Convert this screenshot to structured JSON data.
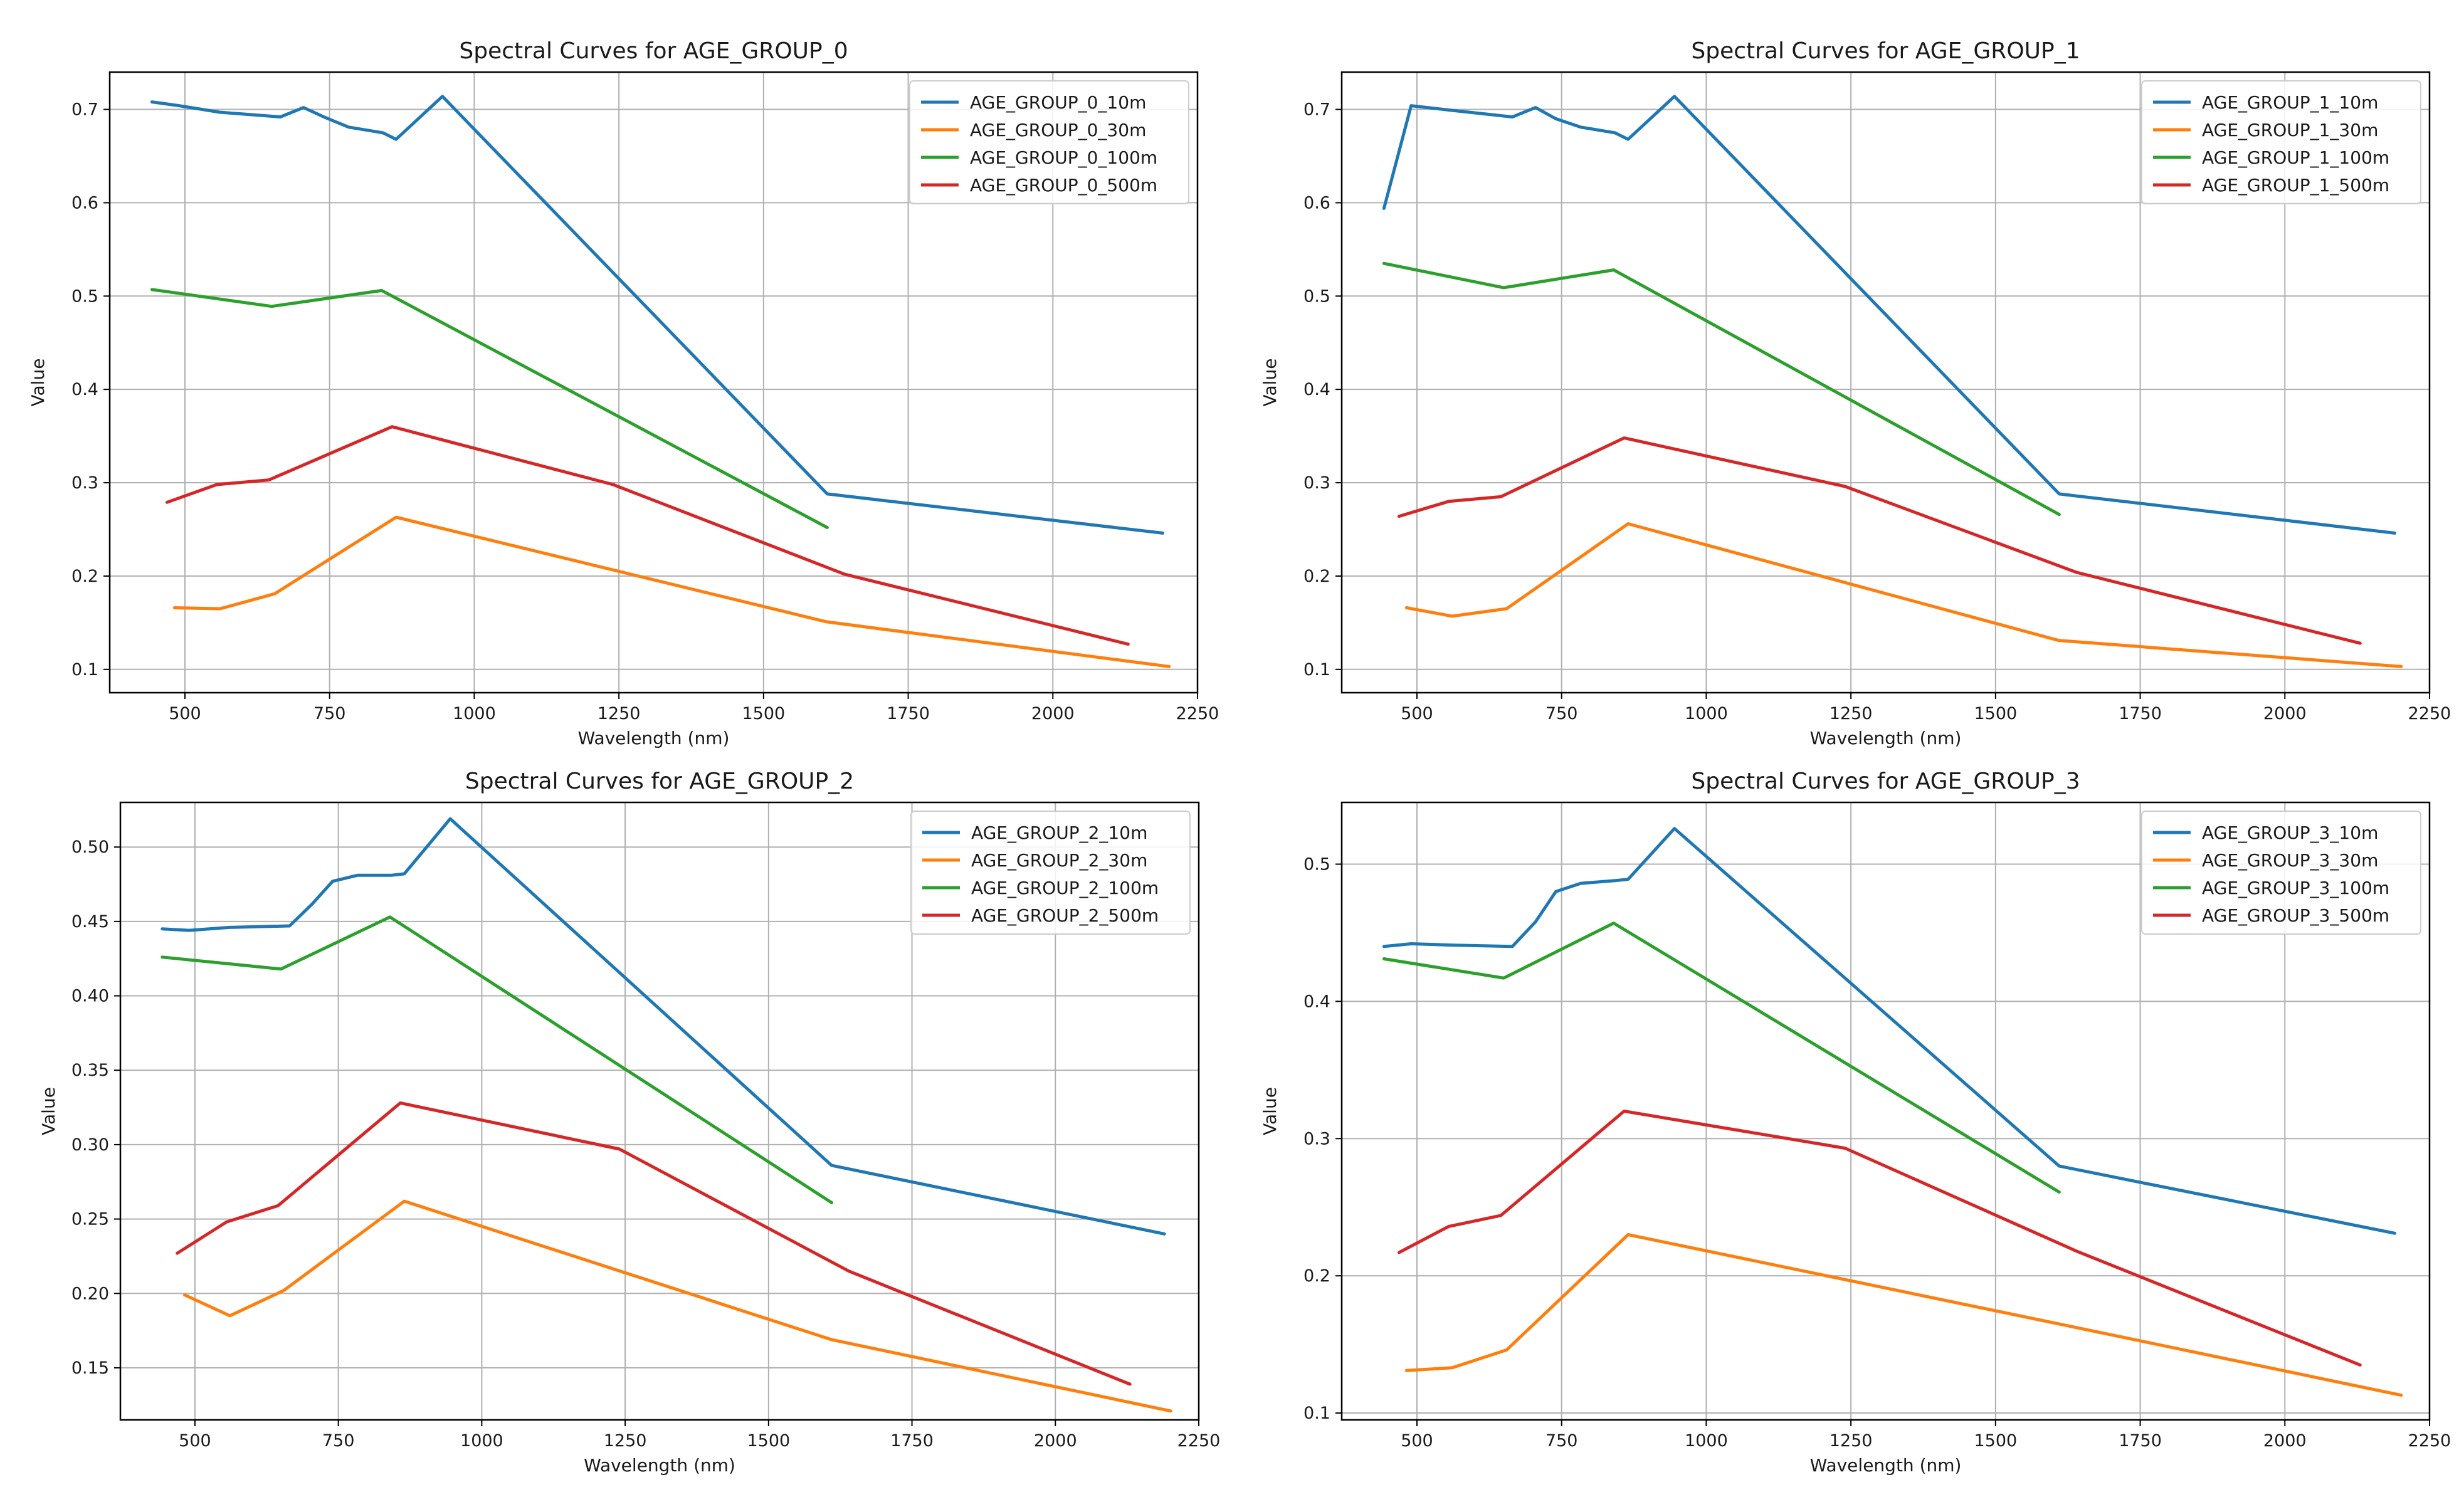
{
  "figure": {
    "colors": {
      "10m": "#1f77b4",
      "30m": "#ff7f0e",
      "100m": "#2ca02c",
      "500m": "#d62728",
      "grid": "#b0b0b0"
    }
  },
  "chart_data": [
    {
      "type": "line",
      "title": "Spectral Curves for AGE_GROUP_0",
      "xlabel": "Wavelength (nm)",
      "ylabel": "Value",
      "xlim": [
        370,
        2250
      ],
      "ylim": [
        0.075,
        0.74
      ],
      "xticks": [
        "500",
        "750",
        "1000",
        "1250",
        "1500",
        "1750",
        "2000",
        "2250"
      ],
      "yticks": [
        "0.1",
        "0.2",
        "0.3",
        "0.4",
        "0.5",
        "0.6",
        "0.7"
      ],
      "legend": "top-right",
      "grid": true,
      "series": [
        {
          "name": "AGE_GROUP_0_10m",
          "color": "#1f77b4",
          "x": [
            443,
            490,
            560,
            665,
            705,
            740,
            783,
            842,
            865,
            945,
            1610,
            2190
          ],
          "y": [
            0.708,
            0.704,
            0.697,
            0.692,
            0.702,
            0.692,
            0.681,
            0.675,
            0.668,
            0.714,
            0.288,
            0.246
          ]
        },
        {
          "name": "AGE_GROUP_0_30m",
          "color": "#ff7f0e",
          "x": [
            482,
            561,
            655,
            865,
            1609,
            2201
          ],
          "y": [
            0.166,
            0.165,
            0.181,
            0.263,
            0.151,
            0.103
          ]
        },
        {
          "name": "AGE_GROUP_0_100m",
          "color": "#2ca02c",
          "x": [
            443,
            650,
            840,
            1610
          ],
          "y": [
            0.507,
            0.489,
            0.506,
            0.252
          ]
        },
        {
          "name": "AGE_GROUP_0_500m",
          "color": "#d62728",
          "x": [
            469,
            555,
            645,
            858,
            1240,
            1640,
            2130
          ],
          "y": [
            0.279,
            0.298,
            0.303,
            0.36,
            0.298,
            0.202,
            0.127
          ]
        }
      ]
    },
    {
      "type": "line",
      "title": "Spectral Curves for AGE_GROUP_1",
      "xlabel": "Wavelength (nm)",
      "ylabel": "Value",
      "xlim": [
        370,
        2250
      ],
      "ylim": [
        0.075,
        0.74
      ],
      "xticks": [
        "500",
        "750",
        "1000",
        "1250",
        "1500",
        "1750",
        "2000",
        "2250"
      ],
      "yticks": [
        "0.1",
        "0.2",
        "0.3",
        "0.4",
        "0.5",
        "0.6",
        "0.7"
      ],
      "legend": "top-right",
      "grid": true,
      "series": [
        {
          "name": "AGE_GROUP_1_10m",
          "color": "#1f77b4",
          "x": [
            443,
            490,
            560,
            665,
            705,
            740,
            783,
            842,
            865,
            945,
            1610,
            2190
          ],
          "y": [
            0.594,
            0.704,
            0.699,
            0.692,
            0.702,
            0.69,
            0.681,
            0.675,
            0.668,
            0.714,
            0.288,
            0.246
          ]
        },
        {
          "name": "AGE_GROUP_1_30m",
          "color": "#ff7f0e",
          "x": [
            482,
            561,
            655,
            865,
            1609,
            2201
          ],
          "y": [
            0.166,
            0.157,
            0.165,
            0.256,
            0.131,
            0.103
          ]
        },
        {
          "name": "AGE_GROUP_1_100m",
          "color": "#2ca02c",
          "x": [
            443,
            650,
            840,
            1610
          ],
          "y": [
            0.535,
            0.509,
            0.528,
            0.266
          ]
        },
        {
          "name": "AGE_GROUP_1_500m",
          "color": "#d62728",
          "x": [
            469,
            555,
            645,
            858,
            1240,
            1640,
            2130
          ],
          "y": [
            0.264,
            0.28,
            0.285,
            0.348,
            0.296,
            0.204,
            0.128
          ]
        }
      ]
    },
    {
      "type": "line",
      "title": "Spectral Curves for AGE_GROUP_2",
      "xlabel": "Wavelength (nm)",
      "ylabel": "Value",
      "xlim": [
        370,
        2250
      ],
      "ylim": [
        0.115,
        0.53
      ],
      "xticks": [
        "500",
        "750",
        "1000",
        "1250",
        "1500",
        "1750",
        "2000",
        "2250"
      ],
      "yticks": [
        "0.15",
        "0.20",
        "0.25",
        "0.30",
        "0.35",
        "0.40",
        "0.45",
        "0.50"
      ],
      "legend": "top-right",
      "grid": true,
      "series": [
        {
          "name": "AGE_GROUP_2_10m",
          "color": "#1f77b4",
          "x": [
            443,
            490,
            560,
            665,
            705,
            740,
            783,
            842,
            865,
            945,
            1610,
            2190
          ],
          "y": [
            0.445,
            0.444,
            0.446,
            0.447,
            0.462,
            0.477,
            0.481,
            0.481,
            0.482,
            0.519,
            0.286,
            0.24
          ]
        },
        {
          "name": "AGE_GROUP_2_30m",
          "color": "#ff7f0e",
          "x": [
            482,
            561,
            655,
            865,
            1609,
            2201
          ],
          "y": [
            0.199,
            0.185,
            0.202,
            0.262,
            0.169,
            0.121
          ]
        },
        {
          "name": "AGE_GROUP_2_100m",
          "color": "#2ca02c",
          "x": [
            443,
            650,
            840,
            1610
          ],
          "y": [
            0.426,
            0.418,
            0.453,
            0.261
          ]
        },
        {
          "name": "AGE_GROUP_2_500m",
          "color": "#d62728",
          "x": [
            469,
            555,
            645,
            858,
            1240,
            1640,
            2130
          ],
          "y": [
            0.227,
            0.248,
            0.259,
            0.328,
            0.297,
            0.215,
            0.139
          ]
        }
      ]
    },
    {
      "type": "line",
      "title": "Spectral Curves for AGE_GROUP_3",
      "xlabel": "Wavelength (nm)",
      "ylabel": "Value",
      "xlim": [
        370,
        2250
      ],
      "ylim": [
        0.095,
        0.545
      ],
      "xticks": [
        "500",
        "750",
        "1000",
        "1250",
        "1500",
        "1750",
        "2000",
        "2250"
      ],
      "yticks": [
        "0.1",
        "0.2",
        "0.3",
        "0.4",
        "0.5"
      ],
      "legend": "top-right",
      "grid": true,
      "series": [
        {
          "name": "AGE_GROUP_3_10m",
          "color": "#1f77b4",
          "x": [
            443,
            490,
            560,
            665,
            705,
            740,
            783,
            842,
            865,
            945,
            1610,
            2190
          ],
          "y": [
            0.44,
            0.442,
            0.441,
            0.44,
            0.458,
            0.48,
            0.486,
            0.488,
            0.489,
            0.526,
            0.28,
            0.231
          ]
        },
        {
          "name": "AGE_GROUP_3_30m",
          "color": "#ff7f0e",
          "x": [
            482,
            561,
            655,
            865,
            1609,
            2201
          ],
          "y": [
            0.131,
            0.133,
            0.146,
            0.23,
            0.165,
            0.113
          ]
        },
        {
          "name": "AGE_GROUP_3_100m",
          "color": "#2ca02c",
          "x": [
            443,
            650,
            840,
            1610
          ],
          "y": [
            0.431,
            0.417,
            0.457,
            0.261
          ]
        },
        {
          "name": "AGE_GROUP_3_500m",
          "color": "#d62728",
          "x": [
            469,
            555,
            645,
            858,
            1240,
            1640,
            2130
          ],
          "y": [
            0.217,
            0.236,
            0.244,
            0.32,
            0.293,
            0.218,
            0.135
          ]
        }
      ]
    }
  ]
}
